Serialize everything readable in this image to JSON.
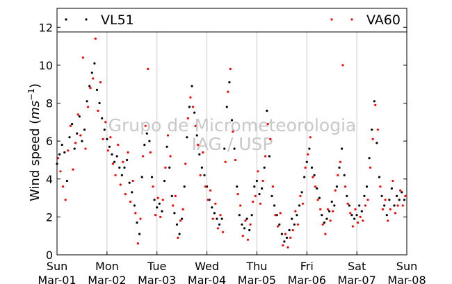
{
  "chart_data": {
    "type": "scatter",
    "title": "",
    "ylabel": "Wind speed (ms⁻¹)",
    "ylabel_prefix": "Wind speed (",
    "ylabel_unit": "ms",
    "ylabel_exp": "−1",
    "ylabel_suffix": ")",
    "xlabel": "",
    "xlim": [
      0,
      7
    ],
    "ylim": [
      0,
      13
    ],
    "yticks": [
      0,
      2,
      4,
      6,
      8,
      10,
      12
    ],
    "xticks": [
      {
        "x": 0,
        "day": "Sun",
        "date": "Mar-01"
      },
      {
        "x": 1,
        "day": "Mon",
        "date": "Mar-02"
      },
      {
        "x": 2,
        "day": "Tue",
        "date": "Mar-03"
      },
      {
        "x": 3,
        "day": "Wed",
        "date": "Mar-04"
      },
      {
        "x": 4,
        "day": "Thu",
        "date": "Mar-05"
      },
      {
        "x": 5,
        "day": "Fri",
        "date": "Mar-06"
      },
      {
        "x": 6,
        "day": "Sat",
        "date": "Mar-07"
      },
      {
        "x": 7,
        "day": "Sun",
        "date": "Mar-08"
      }
    ],
    "grid": "vertical",
    "legend_placement": "top",
    "watermark": [
      "Grupo de Micrometeorologia",
      "IAG / USP"
    ],
    "series": [
      {
        "name": "VL51",
        "color": "#000000",
        "points": [
          [
            0.0,
            4.8
          ],
          [
            0.05,
            5.3
          ],
          [
            0.1,
            5.8
          ],
          [
            0.15,
            5.4
          ],
          [
            0.2,
            3.9
          ],
          [
            0.25,
            6.2
          ],
          [
            0.3,
            6.9
          ],
          [
            0.35,
            5.6
          ],
          [
            0.4,
            6.4
          ],
          [
            0.45,
            7.3
          ],
          [
            0.5,
            6.0
          ],
          [
            0.55,
            6.6
          ],
          [
            0.6,
            8.1
          ],
          [
            0.65,
            8.9
          ],
          [
            0.7,
            9.6
          ],
          [
            0.75,
            10.1
          ],
          [
            0.8,
            8.7
          ],
          [
            0.85,
            8.0
          ],
          [
            0.9,
            7.2
          ],
          [
            0.95,
            6.6
          ],
          [
            1.0,
            6.1
          ],
          [
            1.05,
            5.7
          ],
          [
            1.1,
            5.3
          ],
          [
            1.15,
            4.9
          ],
          [
            1.2,
            5.2
          ],
          [
            1.25,
            4.6
          ],
          [
            1.3,
            4.2
          ],
          [
            1.35,
            4.6
          ],
          [
            1.4,
            5.0
          ],
          [
            1.45,
            3.8
          ],
          [
            1.5,
            3.3
          ],
          [
            1.55,
            2.6
          ],
          [
            1.6,
            1.7
          ],
          [
            1.65,
            1.1
          ],
          [
            1.7,
            4.1
          ],
          [
            1.75,
            5.8
          ],
          [
            1.8,
            6.4
          ],
          [
            1.85,
            6.0
          ],
          [
            1.9,
            4.1
          ],
          [
            1.95,
            2.9
          ],
          [
            2.0,
            2.5
          ],
          [
            2.05,
            2.7
          ],
          [
            2.1,
            2.3
          ],
          [
            2.15,
            3.9
          ],
          [
            2.2,
            5.7
          ],
          [
            2.25,
            4.6
          ],
          [
            2.3,
            3.1
          ],
          [
            2.35,
            2.2
          ],
          [
            2.4,
            1.6
          ],
          [
            2.45,
            1.1
          ],
          [
            2.5,
            1.9
          ],
          [
            2.55,
            3.6
          ],
          [
            2.6,
            6.2
          ],
          [
            2.65,
            7.8
          ],
          [
            2.7,
            8.9
          ],
          [
            2.75,
            7.5
          ],
          [
            2.8,
            6.3
          ],
          [
            2.85,
            5.3
          ],
          [
            2.9,
            4.6
          ],
          [
            2.95,
            4.2
          ],
          [
            3.0,
            3.6
          ],
          [
            3.05,
            2.9
          ],
          [
            3.1,
            2.5
          ],
          [
            3.15,
            2.2
          ],
          [
            3.2,
            1.9
          ],
          [
            3.25,
            1.6
          ],
          [
            3.3,
            1.9
          ],
          [
            3.35,
            5.6
          ],
          [
            3.4,
            7.8
          ],
          [
            3.45,
            9.1
          ],
          [
            3.5,
            7.1
          ],
          [
            3.55,
            5.6
          ],
          [
            3.6,
            3.6
          ],
          [
            3.65,
            2.1
          ],
          [
            3.7,
            1.6
          ],
          [
            3.75,
            1.4
          ],
          [
            3.8,
            1.9
          ],
          [
            3.85,
            1.3
          ],
          [
            3.9,
            2.1
          ],
          [
            3.95,
            3.6
          ],
          [
            4.0,
            3.9
          ],
          [
            4.05,
            3.2
          ],
          [
            4.1,
            3.5
          ],
          [
            4.15,
            4.6
          ],
          [
            4.2,
            7.6
          ],
          [
            4.25,
            5.2
          ],
          [
            4.3,
            3.1
          ],
          [
            4.35,
            2.6
          ],
          [
            4.4,
            2.1
          ],
          [
            4.45,
            1.6
          ],
          [
            4.5,
            1.1
          ],
          [
            4.55,
            0.7
          ],
          [
            4.6,
            0.9
          ],
          [
            4.65,
            1.3
          ],
          [
            4.7,
            1.9
          ],
          [
            4.75,
            1.6
          ],
          [
            4.8,
            2.1
          ],
          [
            4.85,
            2.6
          ],
          [
            4.9,
            3.3
          ],
          [
            4.95,
            4.1
          ],
          [
            5.0,
            4.9
          ],
          [
            5.05,
            5.6
          ],
          [
            5.1,
            4.6
          ],
          [
            5.15,
            4.2
          ],
          [
            5.2,
            3.5
          ],
          [
            5.25,
            3.0
          ],
          [
            5.3,
            2.1
          ],
          [
            5.35,
            1.7
          ],
          [
            5.4,
            1.9
          ],
          [
            5.45,
            2.3
          ],
          [
            5.5,
            2.8
          ],
          [
            5.55,
            2.6
          ],
          [
            5.6,
            3.6
          ],
          [
            5.65,
            4.6
          ],
          [
            5.7,
            5.6
          ],
          [
            5.75,
            4.2
          ],
          [
            5.8,
            3.1
          ],
          [
            5.85,
            2.6
          ],
          [
            5.9,
            2.1
          ],
          [
            5.95,
            1.9
          ],
          [
            6.0,
            2.1
          ],
          [
            6.05,
            2.6
          ],
          [
            6.1,
            2.3
          ],
          [
            6.15,
            3.1
          ],
          [
            6.2,
            3.6
          ],
          [
            6.25,
            5.1
          ],
          [
            6.3,
            6.6
          ],
          [
            6.35,
            8.1
          ],
          [
            6.4,
            5.9
          ],
          [
            6.45,
            4.1
          ],
          [
            6.5,
            3.1
          ],
          [
            6.55,
            2.6
          ],
          [
            6.6,
            2.1
          ],
          [
            6.65,
            2.9
          ],
          [
            6.7,
            3.5
          ],
          [
            6.75,
            2.6
          ],
          [
            6.8,
            3.1
          ],
          [
            6.85,
            2.9
          ],
          [
            6.9,
            3.3
          ],
          [
            6.95,
            2.9
          ]
        ]
      },
      {
        "name": "VA60",
        "color": "#ff0000",
        "points": [
          [
            0.02,
            5.1
          ],
          [
            0.07,
            4.4
          ],
          [
            0.12,
            3.6
          ],
          [
            0.17,
            2.9
          ],
          [
            0.22,
            5.5
          ],
          [
            0.27,
            6.8
          ],
          [
            0.32,
            4.5
          ],
          [
            0.37,
            5.9
          ],
          [
            0.42,
            7.4
          ],
          [
            0.47,
            6.3
          ],
          [
            0.52,
            10.4
          ],
          [
            0.57,
            5.6
          ],
          [
            0.62,
            7.8
          ],
          [
            0.67,
            8.8
          ],
          [
            0.72,
            9.3
          ],
          [
            0.77,
            11.4
          ],
          [
            0.82,
            7.6
          ],
          [
            0.87,
            9.1
          ],
          [
            0.92,
            6.1
          ],
          [
            0.97,
            7.0
          ],
          [
            1.02,
            5.5
          ],
          [
            1.07,
            6.2
          ],
          [
            1.12,
            4.8
          ],
          [
            1.17,
            4.2
          ],
          [
            1.22,
            5.8
          ],
          [
            1.27,
            3.7
          ],
          [
            1.32,
            4.9
          ],
          [
            1.37,
            3.2
          ],
          [
            1.42,
            5.4
          ],
          [
            1.47,
            2.8
          ],
          [
            1.52,
            3.9
          ],
          [
            1.57,
            2.2
          ],
          [
            1.62,
            0.6
          ],
          [
            1.67,
            1.9
          ],
          [
            1.72,
            5.2
          ],
          [
            1.77,
            6.8
          ],
          [
            1.82,
            9.8
          ],
          [
            1.87,
            5.4
          ],
          [
            1.92,
            3.6
          ],
          [
            1.97,
            2.1
          ],
          [
            2.02,
            3.0
          ],
          [
            2.07,
            2.0
          ],
          [
            2.12,
            2.9
          ],
          [
            2.17,
            4.6
          ],
          [
            2.22,
            6.3
          ],
          [
            2.27,
            5.2
          ],
          [
            2.32,
            2.6
          ],
          [
            2.37,
            3.1
          ],
          [
            2.42,
            0.9
          ],
          [
            2.47,
            1.8
          ],
          [
            2.52,
            2.4
          ],
          [
            2.57,
            4.8
          ],
          [
            2.62,
            7.2
          ],
          [
            2.67,
            8.3
          ],
          [
            2.72,
            7.8
          ],
          [
            2.77,
            6.8
          ],
          [
            2.82,
            5.8
          ],
          [
            2.87,
            4.2
          ],
          [
            2.92,
            5.4
          ],
          [
            2.97,
            3.6
          ],
          [
            3.02,
            2.9
          ],
          [
            3.07,
            3.4
          ],
          [
            3.12,
            1.9
          ],
          [
            3.17,
            2.7
          ],
          [
            3.22,
            1.4
          ],
          [
            3.27,
            2.1
          ],
          [
            3.32,
            1.2
          ],
          [
            3.37,
            4.9
          ],
          [
            3.42,
            8.6
          ],
          [
            3.47,
            9.8
          ],
          [
            3.52,
            6.5
          ],
          [
            3.57,
            5.0
          ],
          [
            3.62,
            3.2
          ],
          [
            3.67,
            2.6
          ],
          [
            3.72,
            1.0
          ],
          [
            3.77,
            1.8
          ],
          [
            3.82,
            0.8
          ],
          [
            3.87,
            1.6
          ],
          [
            3.92,
            2.8
          ],
          [
            3.97,
            3.1
          ],
          [
            4.02,
            4.4
          ],
          [
            4.07,
            2.7
          ],
          [
            4.12,
            3.9
          ],
          [
            4.17,
            5.2
          ],
          [
            4.22,
            6.9
          ],
          [
            4.27,
            6.1
          ],
          [
            4.32,
            3.6
          ],
          [
            4.37,
            2.1
          ],
          [
            4.42,
            1.5
          ],
          [
            4.47,
            2.2
          ],
          [
            4.52,
            0.5
          ],
          [
            4.57,
            1.1
          ],
          [
            4.62,
            0.4
          ],
          [
            4.67,
            0.9
          ],
          [
            4.72,
            1.3
          ],
          [
            4.77,
            2.3
          ],
          [
            4.82,
            1.6
          ],
          [
            4.87,
            3.1
          ],
          [
            4.92,
            2.7
          ],
          [
            4.97,
            4.6
          ],
          [
            5.02,
            5.3
          ],
          [
            5.07,
            6.2
          ],
          [
            5.12,
            4.1
          ],
          [
            5.17,
            3.6
          ],
          [
            5.22,
            2.9
          ],
          [
            5.27,
            2.4
          ],
          [
            5.32,
            1.6
          ],
          [
            5.37,
            1.1
          ],
          [
            5.42,
            2.4
          ],
          [
            5.47,
            1.8
          ],
          [
            5.52,
            2.3
          ],
          [
            5.57,
            3.4
          ],
          [
            5.62,
            4.2
          ],
          [
            5.67,
            4.9
          ],
          [
            5.72,
            10.0
          ],
          [
            5.77,
            3.6
          ],
          [
            5.82,
            2.7
          ],
          [
            5.87,
            2.2
          ],
          [
            5.92,
            1.5
          ],
          [
            5.97,
            2.4
          ],
          [
            6.02,
            1.7
          ],
          [
            6.07,
            2.0
          ],
          [
            6.12,
            1.8
          ],
          [
            6.17,
            2.6
          ],
          [
            6.22,
            2.9
          ],
          [
            6.27,
            4.6
          ],
          [
            6.32,
            6.1
          ],
          [
            6.37,
            7.9
          ],
          [
            6.42,
            6.6
          ],
          [
            6.47,
            3.6
          ],
          [
            6.52,
            2.4
          ],
          [
            6.57,
            2.9
          ],
          [
            6.62,
            1.8
          ],
          [
            6.67,
            2.4
          ],
          [
            6.72,
            3.9
          ],
          [
            6.77,
            2.2
          ],
          [
            6.82,
            2.6
          ],
          [
            6.87,
            3.4
          ],
          [
            6.92,
            2.6
          ],
          [
            6.97,
            3.1
          ]
        ]
      }
    ]
  }
}
